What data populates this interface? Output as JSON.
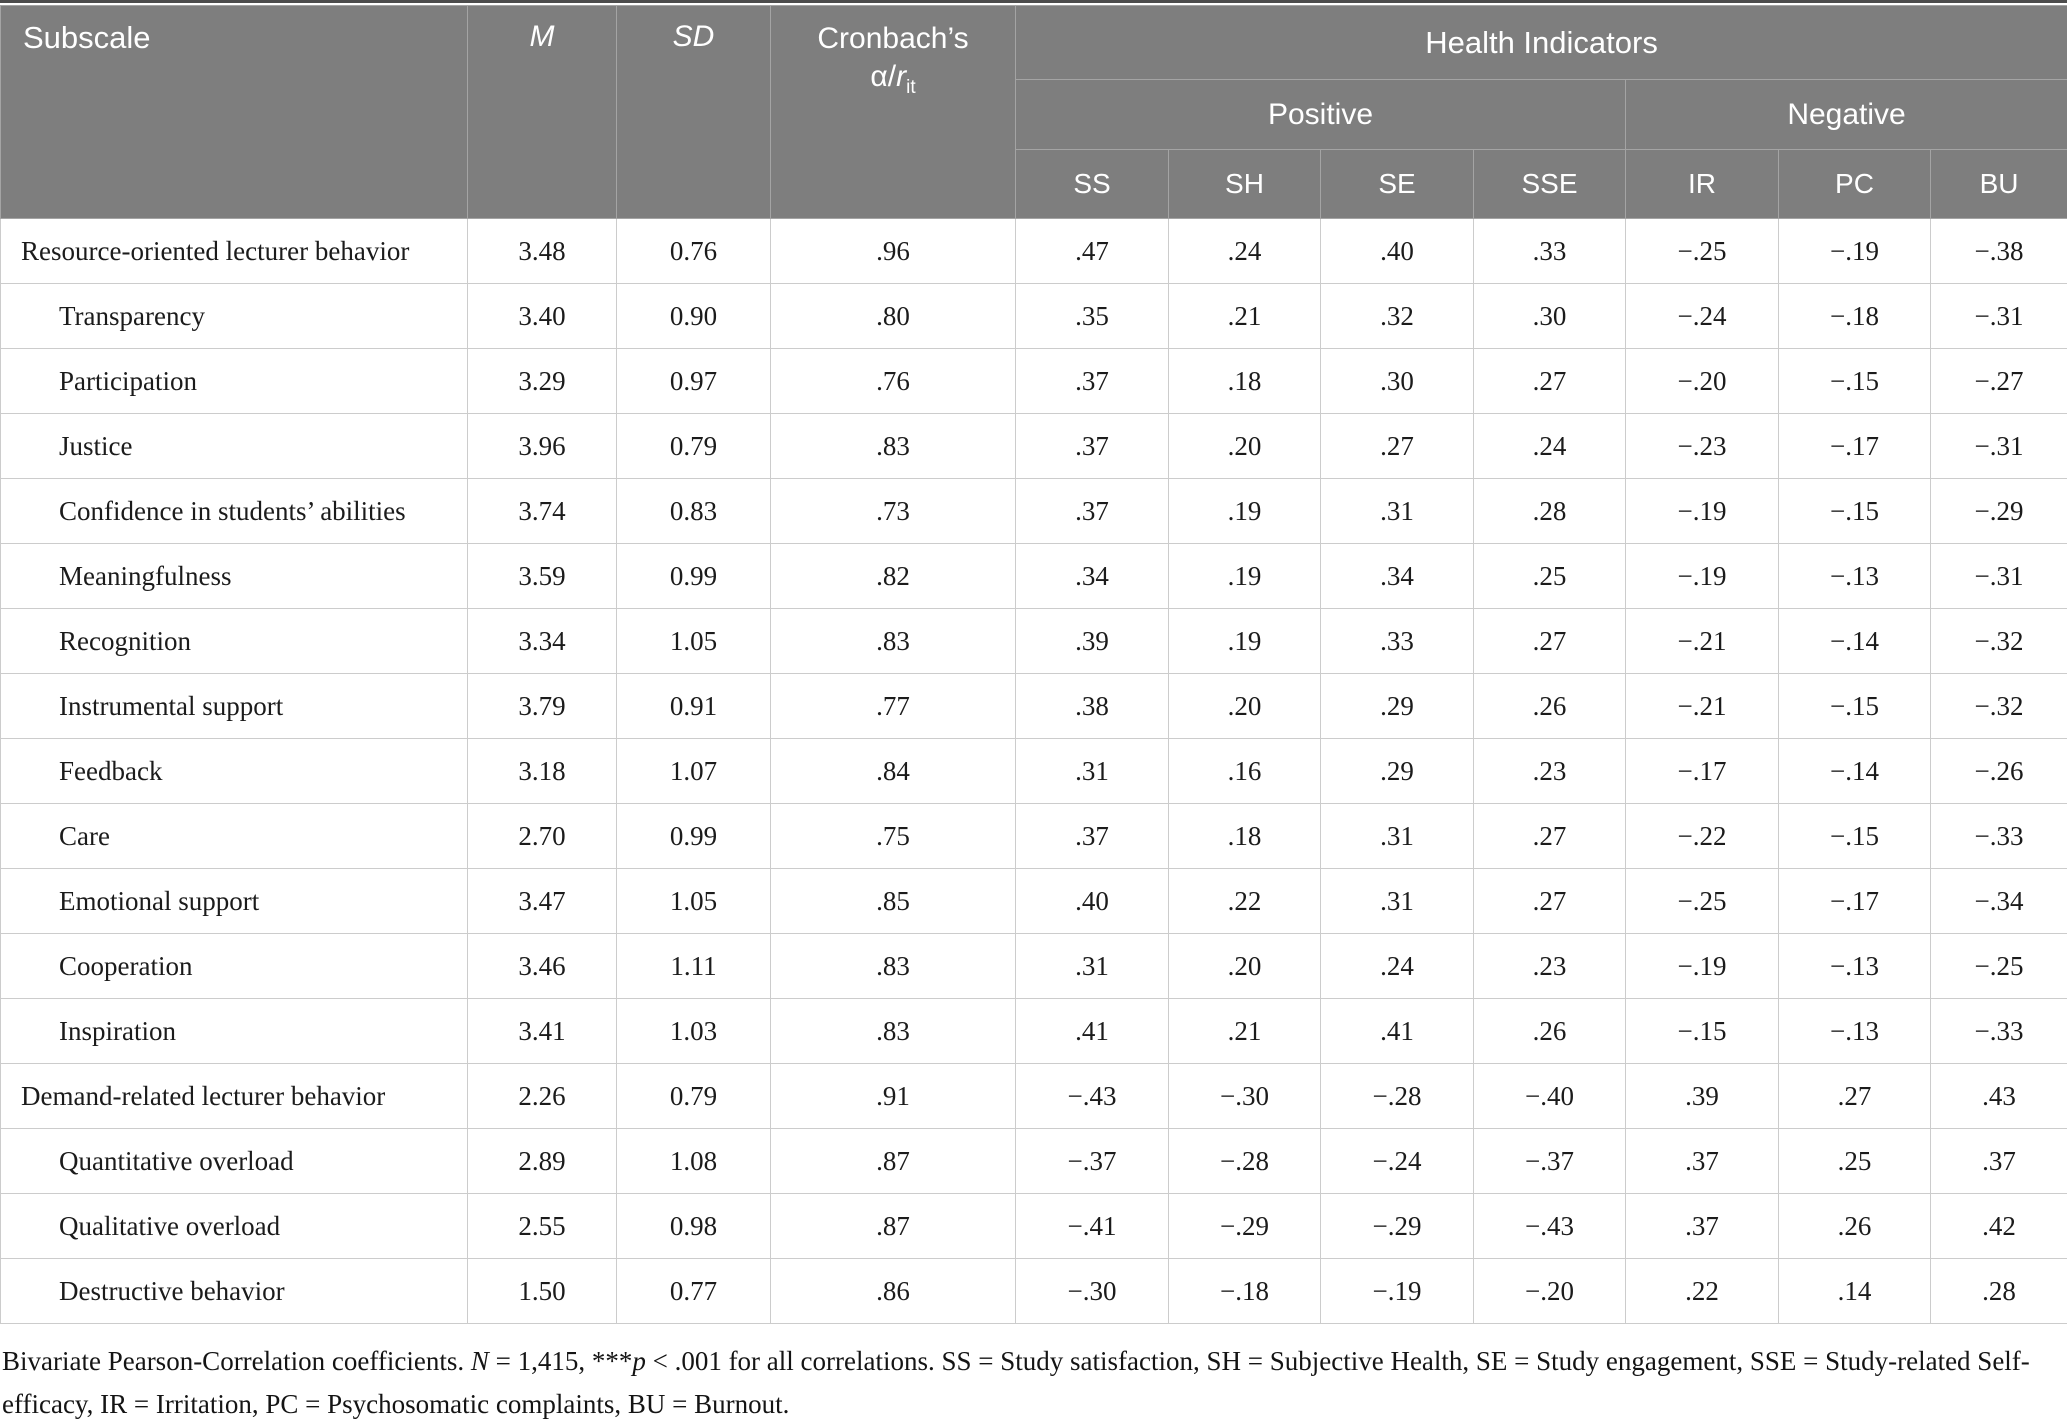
{
  "table": {
    "header": {
      "subscale": "Subscale",
      "m": "M",
      "sd": "SD",
      "cronbach_line1": "Cronbach’s",
      "cronbach_alpha": "α/",
      "cronbach_r": "r",
      "cronbach_sub": "it",
      "health_indicators": "Health Indicators",
      "positive": "Positive",
      "negative": "Negative",
      "columns": [
        "SS",
        "SH",
        "SE",
        "SSE",
        "IR",
        "PC",
        "BU"
      ]
    },
    "rows": [
      {
        "label": "Resource-oriented lecturer behavior",
        "indent": false,
        "m": "3.48",
        "sd": "0.76",
        "alpha": ".96",
        "values": [
          ".47",
          ".24",
          ".40",
          ".33",
          "−.25",
          "−.19",
          "−.38"
        ]
      },
      {
        "label": "Transparency",
        "indent": true,
        "m": "3.40",
        "sd": "0.90",
        "alpha": ".80",
        "values": [
          ".35",
          ".21",
          ".32",
          ".30",
          "−.24",
          "−.18",
          "−.31"
        ]
      },
      {
        "label": "Participation",
        "indent": true,
        "m": "3.29",
        "sd": "0.97",
        "alpha": ".76",
        "values": [
          ".37",
          ".18",
          ".30",
          ".27",
          "−.20",
          "−.15",
          "−.27"
        ]
      },
      {
        "label": "Justice",
        "indent": true,
        "m": "3.96",
        "sd": "0.79",
        "alpha": ".83",
        "values": [
          ".37",
          ".20",
          ".27",
          ".24",
          "−.23",
          "−.17",
          "−.31"
        ]
      },
      {
        "label": "Confidence in students’ abilities",
        "indent": true,
        "m": "3.74",
        "sd": "0.83",
        "alpha": ".73",
        "values": [
          ".37",
          ".19",
          ".31",
          ".28",
          "−.19",
          "−.15",
          "−.29"
        ]
      },
      {
        "label": "Meaningfulness",
        "indent": true,
        "m": "3.59",
        "sd": "0.99",
        "alpha": ".82",
        "values": [
          ".34",
          ".19",
          ".34",
          ".25",
          "−.19",
          "−.13",
          "−.31"
        ]
      },
      {
        "label": "Recognition",
        "indent": true,
        "m": "3.34",
        "sd": "1.05",
        "alpha": ".83",
        "values": [
          ".39",
          ".19",
          ".33",
          ".27",
          "−.21",
          "−.14",
          "−.32"
        ]
      },
      {
        "label": "Instrumental support",
        "indent": true,
        "m": "3.79",
        "sd": "0.91",
        "alpha": ".77",
        "values": [
          ".38",
          ".20",
          ".29",
          ".26",
          "−.21",
          "−.15",
          "−.32"
        ]
      },
      {
        "label": "Feedback",
        "indent": true,
        "m": "3.18",
        "sd": "1.07",
        "alpha": ".84",
        "values": [
          ".31",
          ".16",
          ".29",
          ".23",
          "−.17",
          "−.14",
          "−.26"
        ]
      },
      {
        "label": "Care",
        "indent": true,
        "m": "2.70",
        "sd": "0.99",
        "alpha": ".75",
        "values": [
          ".37",
          ".18",
          ".31",
          ".27",
          "−.22",
          "−.15",
          "−.33"
        ]
      },
      {
        "label": "Emotional support",
        "indent": true,
        "m": "3.47",
        "sd": "1.05",
        "alpha": ".85",
        "values": [
          ".40",
          ".22",
          ".31",
          ".27",
          "−.25",
          "−.17",
          "−.34"
        ]
      },
      {
        "label": "Cooperation",
        "indent": true,
        "m": "3.46",
        "sd": "1.11",
        "alpha": ".83",
        "values": [
          ".31",
          ".20",
          ".24",
          ".23",
          "−.19",
          "−.13",
          "−.25"
        ]
      },
      {
        "label": "Inspiration",
        "indent": true,
        "m": "3.41",
        "sd": "1.03",
        "alpha": ".83",
        "values": [
          ".41",
          ".21",
          ".41",
          ".26",
          "−.15",
          "−.13",
          "−.33"
        ]
      },
      {
        "label": "Demand-related lecturer behavior",
        "indent": false,
        "m": "2.26",
        "sd": "0.79",
        "alpha": ".91",
        "values": [
          "−.43",
          "−.30",
          "−.28",
          "−.40",
          ".39",
          ".27",
          ".43"
        ]
      },
      {
        "label": "Quantitative overload",
        "indent": true,
        "m": "2.89",
        "sd": "1.08",
        "alpha": ".87",
        "values": [
          "−.37",
          "−.28",
          "−.24",
          "−.37",
          ".37",
          ".25",
          ".37"
        ]
      },
      {
        "label": "Qualitative overload",
        "indent": true,
        "m": "2.55",
        "sd": "0.98",
        "alpha": ".87",
        "values": [
          "−.41",
          "−.29",
          "−.29",
          "−.43",
          ".37",
          ".26",
          ".42"
        ]
      },
      {
        "label": "Destructive behavior",
        "indent": true,
        "m": "1.50",
        "sd": "0.77",
        "alpha": ".86",
        "values": [
          "−.30",
          "−.18",
          "−.19",
          "−.20",
          ".22",
          ".14",
          ".28"
        ]
      }
    ]
  },
  "footnote": {
    "part1": "Bivariate Pearson-Correlation coefficients. ",
    "n": "N",
    "part2": " = 1,415, ***",
    "p": "p",
    "part3": " < .001 for all correlations. SS = Study satisfaction, SH = Subjective Health, SE = Study engagement, SSE = Study-related Self-efficacy, IR = Irritation, PC = Psychosomatic complaints, BU = Burnout."
  }
}
